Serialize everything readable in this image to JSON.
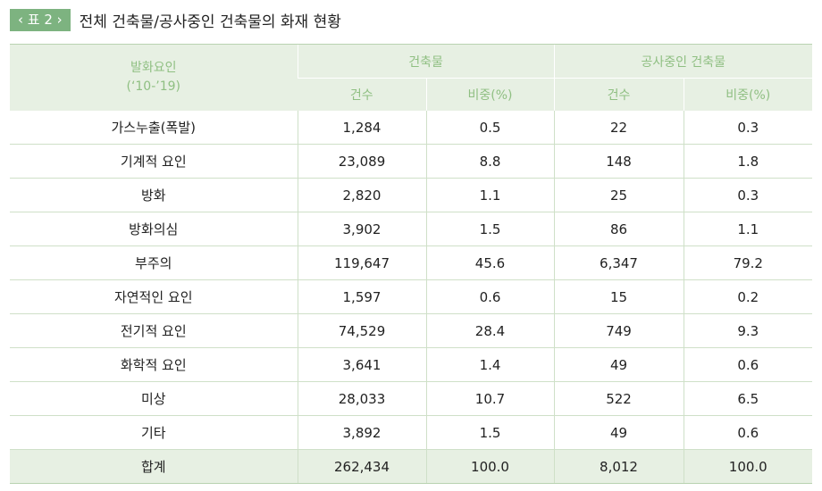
{
  "caption": {
    "badge": "‹ 표 2 ›",
    "title": "전체 건축물/공사중인 건축물의 화재 현황"
  },
  "header": {
    "stub_line1": "발화요인",
    "stub_line2": "(‘10-’19)",
    "group1": "건축물",
    "group2": "공사중인 건축물",
    "count": "건수",
    "ratio": "비중(%)"
  },
  "rows": [
    {
      "cause": "가스누출(폭발)",
      "b_count": "1,284",
      "b_ratio": "0.5",
      "c_count": "22",
      "c_ratio": "0.3"
    },
    {
      "cause": "기계적 요인",
      "b_count": "23,089",
      "b_ratio": "8.8",
      "c_count": "148",
      "c_ratio": "1.8"
    },
    {
      "cause": "방화",
      "b_count": "2,820",
      "b_ratio": "1.1",
      "c_count": "25",
      "c_ratio": "0.3"
    },
    {
      "cause": "방화의심",
      "b_count": "3,902",
      "b_ratio": "1.5",
      "c_count": "86",
      "c_ratio": "1.1"
    },
    {
      "cause": "부주의",
      "b_count": "119,647",
      "b_ratio": "45.6",
      "c_count": "6,347",
      "c_ratio": "79.2"
    },
    {
      "cause": "자연적인 요인",
      "b_count": "1,597",
      "b_ratio": "0.6",
      "c_count": "15",
      "c_ratio": "0.2"
    },
    {
      "cause": "전기적 요인",
      "b_count": "74,529",
      "b_ratio": "28.4",
      "c_count": "749",
      "c_ratio": "9.3"
    },
    {
      "cause": "화학적 요인",
      "b_count": "3,641",
      "b_ratio": "1.4",
      "c_count": "49",
      "c_ratio": "0.6"
    },
    {
      "cause": "미상",
      "b_count": "28,033",
      "b_ratio": "10.7",
      "c_count": "522",
      "c_ratio": "6.5"
    },
    {
      "cause": "기타",
      "b_count": "3,892",
      "b_ratio": "1.5",
      "c_count": "49",
      "c_ratio": "0.6"
    }
  ],
  "total": {
    "cause": "합계",
    "b_count": "262,434",
    "b_ratio": "100.0",
    "c_count": "8,012",
    "c_ratio": "100.0"
  },
  "colors": {
    "accent": "#7db380",
    "header_bg": "#e7f0e3",
    "header_text": "#8fbf82",
    "rule": "#cfe0c8"
  }
}
